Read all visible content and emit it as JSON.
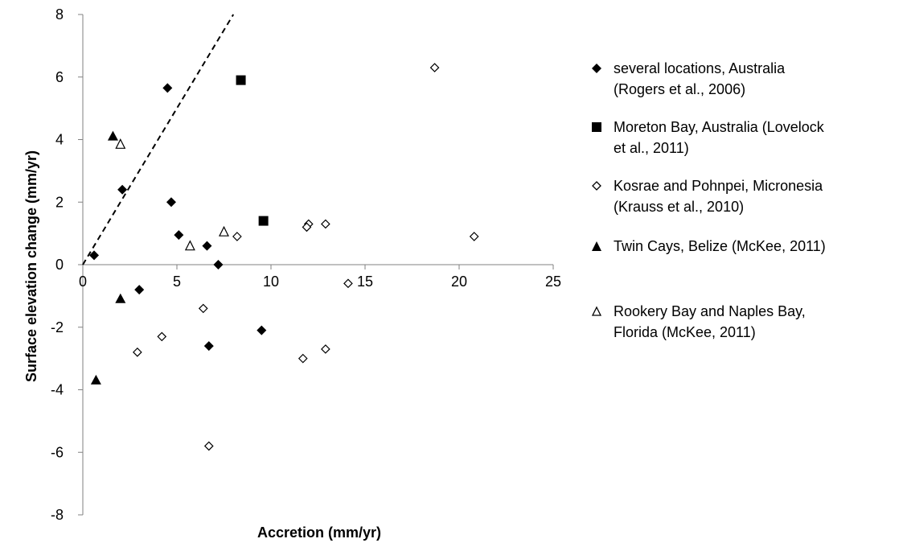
{
  "chart_data": {
    "type": "scatter",
    "xlabel": "Accretion (mm/yr)",
    "ylabel": "Surface elevation change (mm/yr)",
    "xlim": [
      0,
      25
    ],
    "ylim": [
      -8,
      8
    ],
    "xticks": [
      0,
      5,
      10,
      15,
      20,
      25
    ],
    "yticks": [
      -8,
      -6,
      -4,
      -2,
      0,
      2,
      4,
      6,
      8
    ],
    "grid": false,
    "legend_position": "right",
    "reference_line": {
      "style": "dashed",
      "from": [
        0,
        0
      ],
      "to": [
        8,
        8
      ]
    },
    "series": [
      {
        "name": "several locations, Australia (Rogers et al., 2006)",
        "marker": "diamond-filled",
        "points": [
          [
            0.6,
            0.3
          ],
          [
            4.5,
            5.65
          ],
          [
            2.1,
            2.4
          ],
          [
            4.7,
            2.0
          ],
          [
            5.1,
            0.95
          ],
          [
            6.6,
            0.6
          ],
          [
            7.2,
            0.0
          ],
          [
            3.0,
            -0.8
          ],
          [
            6.7,
            -2.6
          ],
          [
            9.5,
            -2.1
          ]
        ]
      },
      {
        "name": "Moreton Bay, Australia (Lovelock et al., 2011)",
        "marker": "square-filled",
        "points": [
          [
            8.4,
            5.9
          ],
          [
            9.6,
            1.4
          ]
        ]
      },
      {
        "name": "Kosrae and Pohnpei, Micronesia (Krauss et al., 2010)",
        "marker": "diamond-open",
        "points": [
          [
            18.7,
            6.3
          ],
          [
            20.8,
            0.9
          ],
          [
            12.0,
            1.3
          ],
          [
            11.9,
            1.2
          ],
          [
            12.9,
            1.3
          ],
          [
            8.2,
            0.9
          ],
          [
            14.1,
            -0.6
          ],
          [
            6.4,
            -1.4
          ],
          [
            4.2,
            -2.3
          ],
          [
            2.9,
            -2.8
          ],
          [
            11.7,
            -3.0
          ],
          [
            12.9,
            -2.7
          ],
          [
            6.7,
            -5.8
          ]
        ]
      },
      {
        "name": "Twin Cays, Belize (McKee, 2011)",
        "marker": "triangle-filled",
        "points": [
          [
            1.6,
            4.1
          ],
          [
            2.0,
            -1.1
          ],
          [
            0.7,
            -3.7
          ]
        ]
      },
      {
        "name": "Rookery Bay and Naples Bay, Florida (McKee, 2011)",
        "marker": "triangle-open",
        "points": [
          [
            2.0,
            3.85
          ],
          [
            5.7,
            0.6
          ],
          [
            7.5,
            1.05
          ]
        ]
      }
    ]
  },
  "legend_items": [
    {
      "line1": "several locations, Australia",
      "line2": "(Rogers et al., 2006)"
    },
    {
      "line1": "Moreton Bay, Australia (Lovelock",
      "line2": "et al., 2011)"
    },
    {
      "line1": "Kosrae and Pohnpei, Micronesia",
      "line2": "(Krauss et al., 2010)"
    },
    {
      "line1": "Twin Cays, Belize (McKee, 2011)",
      "line2": ""
    },
    {
      "line1": "Rookery Bay and Naples Bay,",
      "line2": "Florida (McKee, 2011)"
    }
  ]
}
